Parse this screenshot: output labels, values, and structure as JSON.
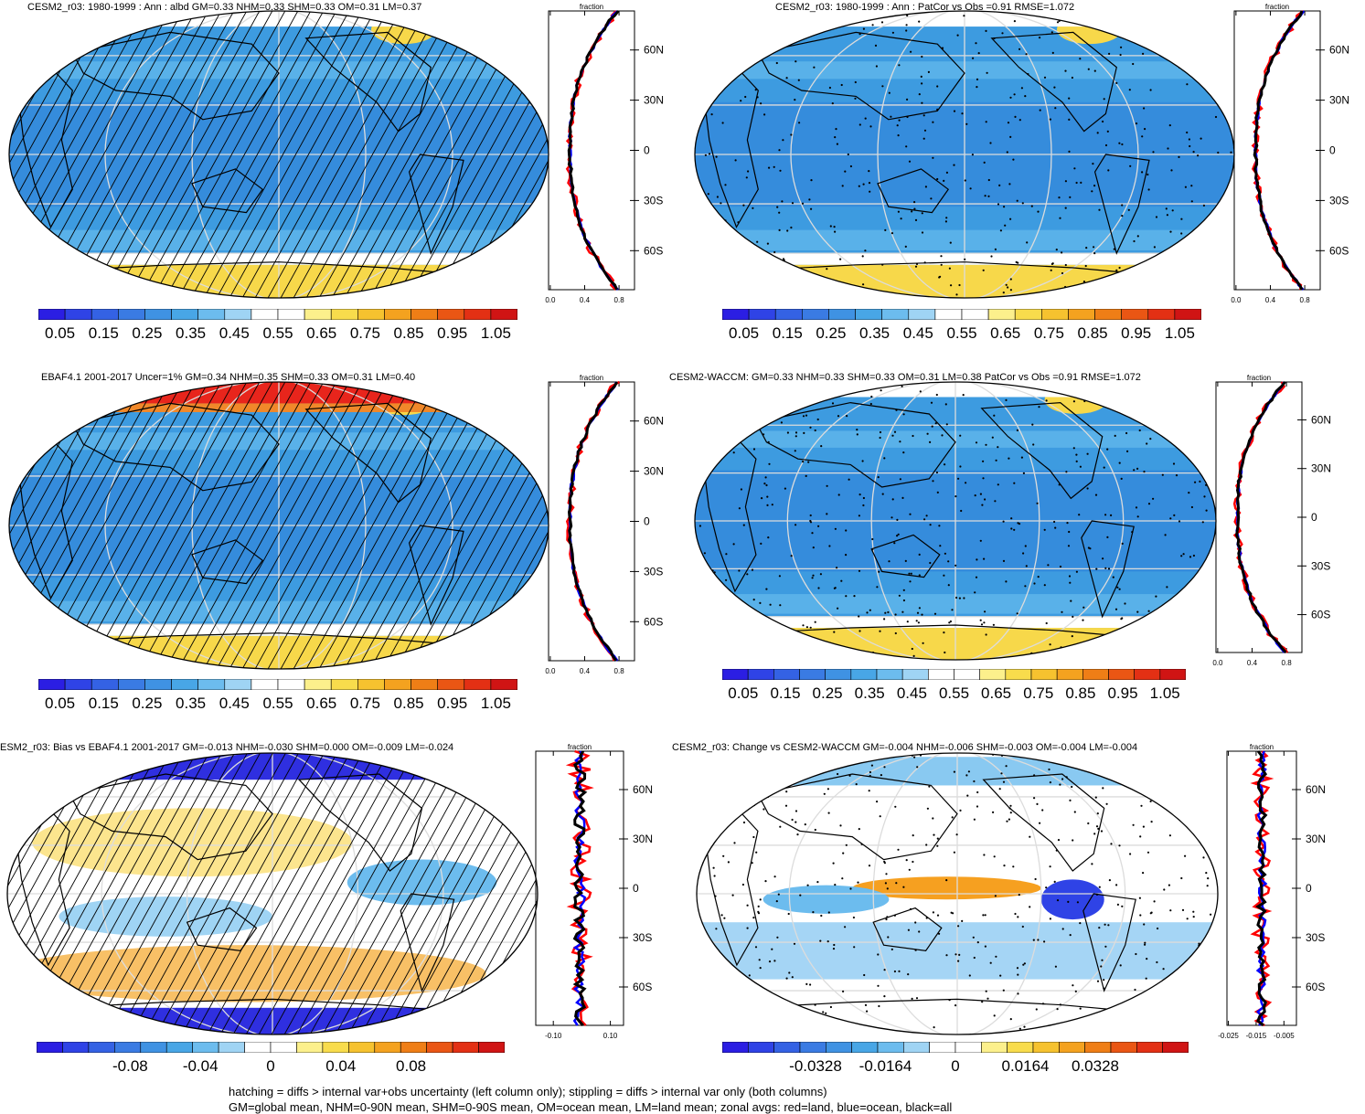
{
  "panels": [
    {
      "id": "p1",
      "title": "CESM2_r03: 1980-1999 : Ann : albd GM=0.33 NHM=0.33 SHM=0.33 OM=0.31 LM=0.37",
      "zonal_label": "fraction",
      "zonal_lat_labels": [
        "60N",
        "30N",
        "0",
        "30S",
        "60S"
      ],
      "zonal_x_ticks": [
        "0.0",
        "0.4",
        "0.8"
      ],
      "colorbar_labels": [
        "0.05",
        "0.15",
        "0.25",
        "0.35",
        "0.45",
        "0.55",
        "0.65",
        "0.75",
        "0.85",
        "0.95",
        "1.05"
      ],
      "overlay": "hatch"
    },
    {
      "id": "p2",
      "title": "CESM2_r03: 1980-1999 : Ann : PatCor vs Obs =0.91 RMSE=1.072",
      "zonal_label": "fraction",
      "zonal_lat_labels": [
        "60N",
        "30N",
        "0",
        "30S",
        "60S"
      ],
      "zonal_x_ticks": [
        "0.0",
        "0.4",
        "0.8"
      ],
      "colorbar_labels": [
        "0.05",
        "0.15",
        "0.25",
        "0.35",
        "0.45",
        "0.55",
        "0.65",
        "0.75",
        "0.85",
        "0.95",
        "1.05"
      ],
      "overlay": "stipple"
    },
    {
      "id": "p3",
      "title": "EBAF4.1 2001-2017 Uncer=1% GM=0.34 NHM=0.35 SHM=0.33 OM=0.31 LM=0.40",
      "zonal_label": "fraction",
      "zonal_lat_labels": [
        "60N",
        "30N",
        "0",
        "30S",
        "60S"
      ],
      "zonal_x_ticks": [
        "0.0",
        "0.4",
        "0.8"
      ],
      "colorbar_labels": [
        "0.05",
        "0.15",
        "0.25",
        "0.35",
        "0.45",
        "0.55",
        "0.65",
        "0.75",
        "0.85",
        "0.95",
        "1.05"
      ],
      "overlay": "hatch"
    },
    {
      "id": "p4",
      "title": "CESM2-WACCM: GM=0.33 NHM=0.33 SHM=0.33 OM=0.31 LM=0.38 PatCor vs Obs =0.91 RMSE=1.072",
      "zonal_label": "fraction",
      "zonal_lat_labels": [
        "60N",
        "30N",
        "0",
        "30S",
        "60S"
      ],
      "zonal_x_ticks": [
        "0.0",
        "0.4",
        "0.8"
      ],
      "colorbar_labels": [
        "0.05",
        "0.15",
        "0.25",
        "0.35",
        "0.45",
        "0.55",
        "0.65",
        "0.75",
        "0.85",
        "0.95",
        "1.05"
      ],
      "overlay": "stipple"
    },
    {
      "id": "p5",
      "title": "ESM2_r03: Bias vs EBAF4.1 2001-2017 GM=-0.013 NHM=-0.030 SHM=0.000 OM=-0.009 LM=-0.024",
      "zonal_label": "fraction",
      "zonal_lat_labels": [
        "60N",
        "30N",
        "0",
        "30S",
        "60S"
      ],
      "zonal_x_ticks": [
        "-0.10",
        "0.10"
      ],
      "colorbar_labels": [
        "-0.08",
        "-0.04",
        "0",
        "0.04",
        "0.08"
      ],
      "overlay": "hatch"
    },
    {
      "id": "p6",
      "title": "CESM2_r03: Change vs CESM2-WACCM GM=-0.004 NHM=-0.006 SHM=-0.003 OM=-0.004 LM=-0.004",
      "zonal_label": "fraction",
      "zonal_lat_labels": [
        "60N",
        "30N",
        "0",
        "30S",
        "60S"
      ],
      "zonal_x_ticks": [
        "-0.025",
        "-0.015",
        "-0.005"
      ],
      "colorbar_labels": [
        "-0.0328",
        "-0.0164",
        "0",
        "0.0164",
        "0.0328"
      ],
      "overlay": "stipple"
    }
  ],
  "colors": {
    "ocean_main": "#3d9be0",
    "ocean_deep": "#2f7fd8",
    "land_light": "#6cc0ef",
    "ice_yellow": "#f7d84a",
    "hot_red": "#e8251c",
    "zonal_land": "#ff0000",
    "zonal_ocean": "#0000ff",
    "zonal_all": "#000000"
  },
  "footnote": {
    "line1": "hatching = diffs > internal var+obs uncertainty (left column only); stippling = diffs > internal var only (both columns)",
    "line2": "GM=global mean, NHM=0-90N mean, SHM=0-90S mean, OM=ocean mean, LM=land mean; zonal avgs: red=land, blue=ocean, black=all"
  }
}
